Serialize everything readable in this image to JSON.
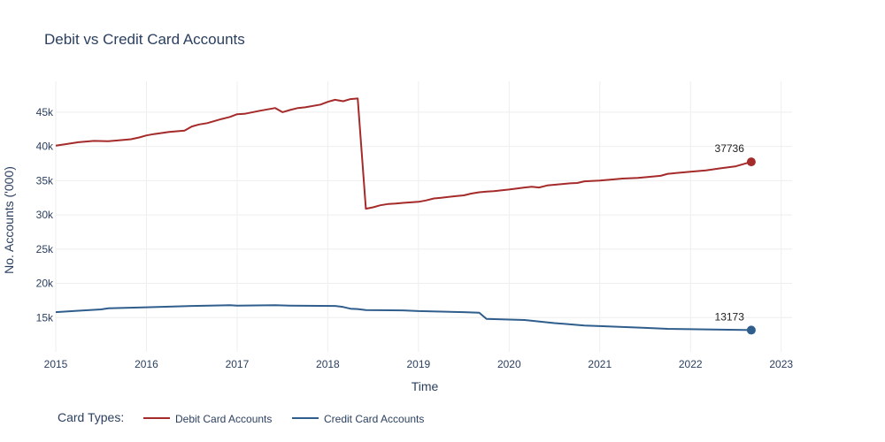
{
  "chart_data": {
    "type": "line",
    "title": "Debit vs Credit Card Accounts",
    "xlabel": "Time",
    "ylabel": "No. Accounts ('000)",
    "xlim": [
      2015.0,
      2023.12
    ],
    "ylim": [
      10000,
      49500
    ],
    "x_ticks": [
      2015,
      2016,
      2017,
      2018,
      2019,
      2020,
      2021,
      2022,
      2023
    ],
    "x_tick_labels": [
      "2015",
      "2016",
      "2017",
      "2018",
      "2019",
      "2020",
      "2021",
      "2022",
      "2023"
    ],
    "y_ticks": [
      15000,
      20000,
      25000,
      30000,
      35000,
      40000,
      45000
    ],
    "y_tick_labels": [
      "15k",
      "20k",
      "25k",
      "30k",
      "35k",
      "40k",
      "45k"
    ],
    "grid": true,
    "legend": {
      "title": "Card Types:",
      "placement": "bottom-left",
      "orientation": "horizontal"
    },
    "series": [
      {
        "name": "Debit Card Accounts",
        "color": "#a52a2a",
        "end_label": "37736",
        "points": [
          [
            2015.0,
            40100
          ],
          [
            2015.1,
            40300
          ],
          [
            2015.25,
            40600
          ],
          [
            2015.42,
            40800
          ],
          [
            2015.58,
            40750
          ],
          [
            2015.75,
            40950
          ],
          [
            2015.83,
            41050
          ],
          [
            2015.92,
            41300
          ],
          [
            2016.0,
            41600
          ],
          [
            2016.08,
            41800
          ],
          [
            2016.25,
            42100
          ],
          [
            2016.42,
            42300
          ],
          [
            2016.5,
            42900
          ],
          [
            2016.58,
            43200
          ],
          [
            2016.67,
            43400
          ],
          [
            2016.83,
            44000
          ],
          [
            2016.92,
            44300
          ],
          [
            2017.0,
            44700
          ],
          [
            2017.08,
            44750
          ],
          [
            2017.25,
            45200
          ],
          [
            2017.42,
            45600
          ],
          [
            2017.5,
            45000
          ],
          [
            2017.58,
            45300
          ],
          [
            2017.67,
            45600
          ],
          [
            2017.75,
            45700
          ],
          [
            2017.92,
            46100
          ],
          [
            2018.0,
            46500
          ],
          [
            2018.08,
            46800
          ],
          [
            2018.17,
            46600
          ],
          [
            2018.25,
            46900
          ],
          [
            2018.33,
            47000
          ],
          [
            2018.42,
            30900
          ],
          [
            2018.5,
            31100
          ],
          [
            2018.58,
            31400
          ],
          [
            2018.67,
            31600
          ],
          [
            2018.75,
            31650
          ],
          [
            2018.83,
            31750
          ],
          [
            2019.0,
            31900
          ],
          [
            2019.08,
            32100
          ],
          [
            2019.17,
            32400
          ],
          [
            2019.25,
            32500
          ],
          [
            2019.42,
            32750
          ],
          [
            2019.5,
            32850
          ],
          [
            2019.58,
            33100
          ],
          [
            2019.67,
            33300
          ],
          [
            2019.75,
            33400
          ],
          [
            2019.83,
            33450
          ],
          [
            2020.0,
            33700
          ],
          [
            2020.17,
            34000
          ],
          [
            2020.25,
            34100
          ],
          [
            2020.33,
            34000
          ],
          [
            2020.42,
            34300
          ],
          [
            2020.5,
            34400
          ],
          [
            2020.67,
            34600
          ],
          [
            2020.75,
            34650
          ],
          [
            2020.83,
            34900
          ],
          [
            2021.0,
            35000
          ],
          [
            2021.17,
            35200
          ],
          [
            2021.25,
            35300
          ],
          [
            2021.42,
            35400
          ],
          [
            2021.5,
            35500
          ],
          [
            2021.67,
            35700
          ],
          [
            2021.75,
            36000
          ],
          [
            2021.92,
            36200
          ],
          [
            2022.0,
            36300
          ],
          [
            2022.17,
            36500
          ],
          [
            2022.33,
            36800
          ],
          [
            2022.5,
            37100
          ],
          [
            2022.67,
            37736
          ]
        ]
      },
      {
        "name": "Credit Card Accounts",
        "color": "#2f5d8c",
        "end_label": "13173",
        "points": [
          [
            2015.0,
            15800
          ],
          [
            2015.25,
            16000
          ],
          [
            2015.5,
            16200
          ],
          [
            2015.58,
            16350
          ],
          [
            2016.0,
            16500
          ],
          [
            2016.5,
            16700
          ],
          [
            2016.92,
            16800
          ],
          [
            2017.0,
            16750
          ],
          [
            2017.42,
            16800
          ],
          [
            2017.58,
            16750
          ],
          [
            2018.08,
            16700
          ],
          [
            2018.17,
            16550
          ],
          [
            2018.25,
            16300
          ],
          [
            2018.33,
            16250
          ],
          [
            2018.42,
            16100
          ],
          [
            2018.83,
            16050
          ],
          [
            2019.0,
            15950
          ],
          [
            2019.5,
            15800
          ],
          [
            2019.67,
            15700
          ],
          [
            2019.75,
            14800
          ],
          [
            2020.17,
            14650
          ],
          [
            2020.5,
            14200
          ],
          [
            2020.83,
            13850
          ],
          [
            2021.0,
            13750
          ],
          [
            2021.5,
            13500
          ],
          [
            2021.75,
            13350
          ],
          [
            2022.0,
            13300
          ],
          [
            2022.67,
            13173
          ]
        ]
      }
    ]
  }
}
